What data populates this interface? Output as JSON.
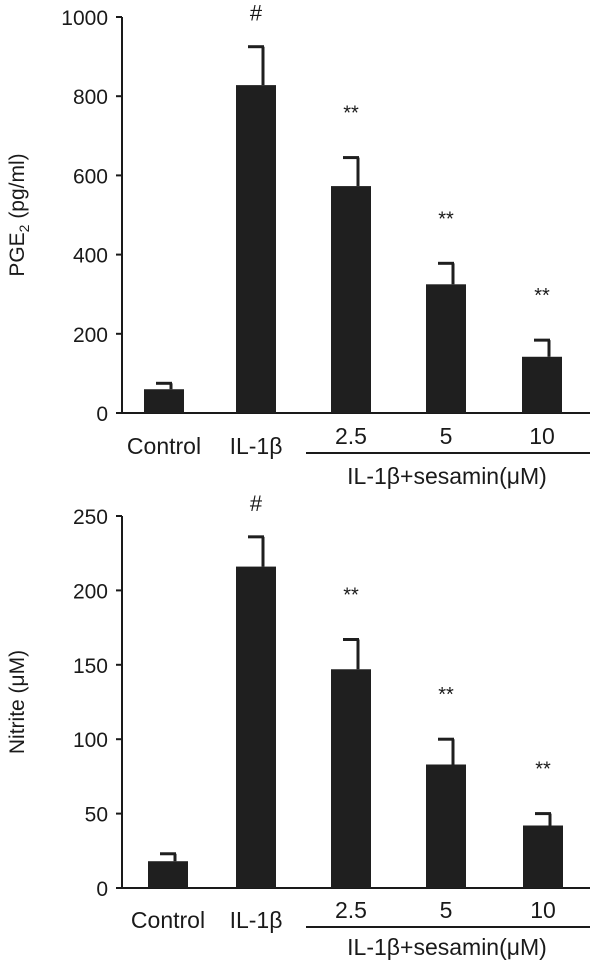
{
  "chart_data": [
    {
      "type": "bar",
      "ylabel": "PGE",
      "ylabel_sub": "2",
      "ylabel_unit": " (pg/ml)",
      "ylim": [
        0,
        1000
      ],
      "yticks": [
        0,
        200,
        400,
        600,
        800,
        1000
      ],
      "categories": [
        "Control",
        "IL-1β",
        "2.5",
        "5",
        "10"
      ],
      "values": [
        60,
        828,
        573,
        325,
        142
      ],
      "errors": [
        15,
        97,
        72,
        53,
        42
      ],
      "annotations": [
        "",
        "#",
        "**",
        "**",
        "**"
      ],
      "group_label": "IL-1β+sesamin(μM)",
      "bar_color": "#1f1f1f"
    },
    {
      "type": "bar",
      "ylabel": "Nitrite (μM)",
      "ylim": [
        0,
        250
      ],
      "yticks": [
        0,
        50,
        100,
        150,
        200,
        250
      ],
      "categories": [
        "Control",
        "IL-1β",
        "2.5",
        "5",
        "10"
      ],
      "values": [
        18,
        216,
        147,
        83,
        42
      ],
      "errors": [
        5,
        20,
        20,
        17,
        8
      ],
      "annotations": [
        "",
        "#",
        "**",
        "**",
        "**"
      ],
      "group_label": "IL-1β+sesamin(μM)",
      "bar_color": "#1f1f1f"
    }
  ]
}
